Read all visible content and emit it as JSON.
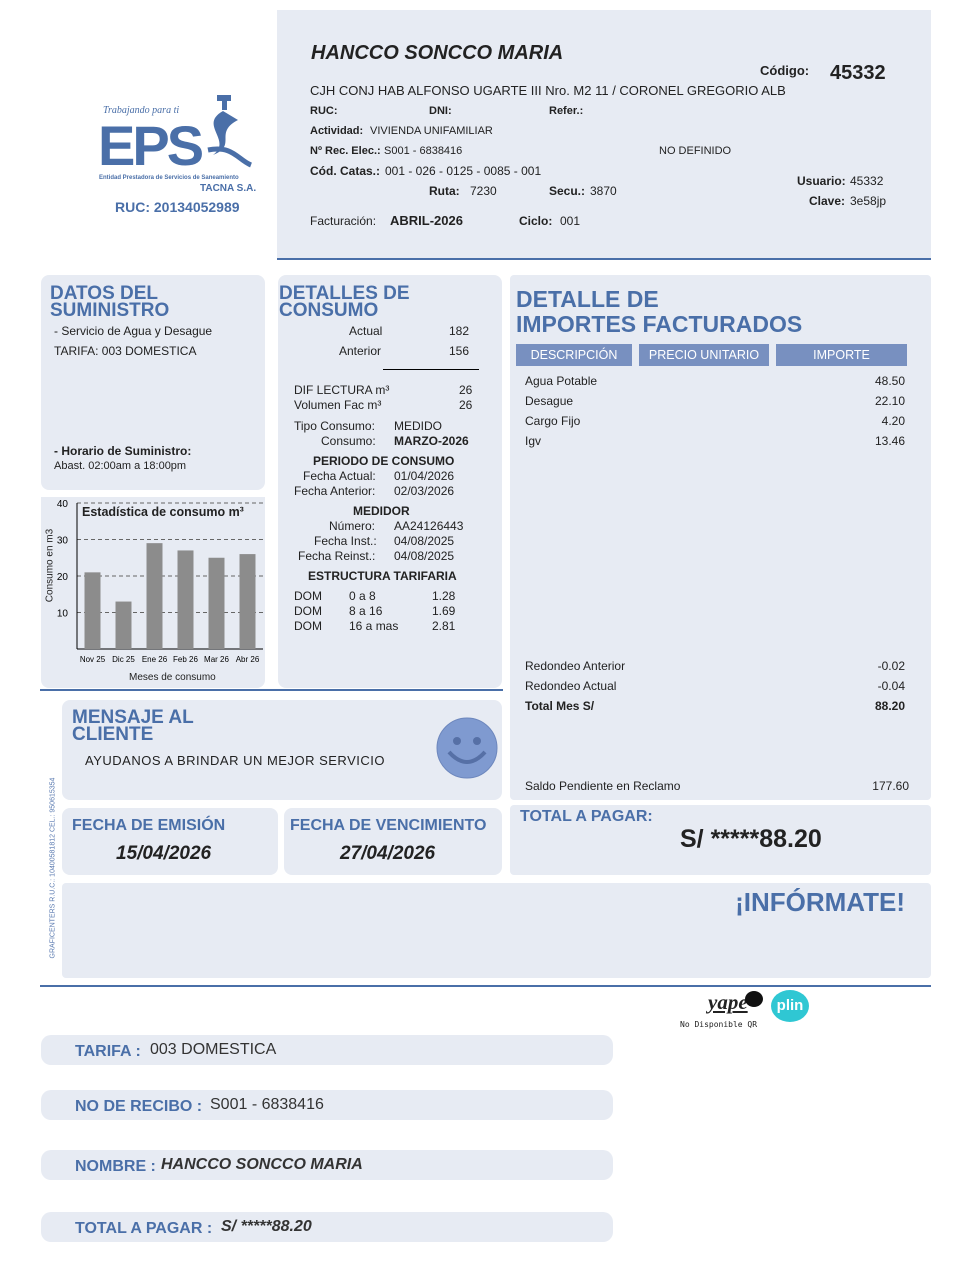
{
  "logo": {
    "tagline": "Trabajando para ti",
    "brand": "EPS",
    "entity": "Entidad Prestadora de Servicios de Saneamiento",
    "company": "TACNA S.A.",
    "ruc": "RUC: 20134052989",
    "color": "#4a6fa8"
  },
  "header": {
    "name": "HANCCO SONCCO MARIA",
    "codigo_label": "Código:",
    "codigo": "45332",
    "address": "CJH CONJ HAB ALFONSO UGARTE III Nro. M2  11 / CORONEL GREGORIO ALB",
    "ruc_label": "RUC:",
    "dni_label": "DNI:",
    "refer_label": "Refer.:",
    "actividad_label": "Actividad:",
    "actividad": "VIVIENDA UNIFAMILIAR",
    "rec_label": "Nº Rec. Elec.:",
    "rec": "S001 - 6838416",
    "no_definido": "NO DEFINIDO",
    "catas_label": "Cód. Catas.:",
    "catas": "001 - 026 - 0125 - 0085 - 001",
    "ruta_label": "Ruta:",
    "ruta": "7230",
    "secu_label": "Secu.:",
    "secu": "3870",
    "usuario_label": "Usuario:",
    "usuario": "45332",
    "clave_label": "Clave:",
    "clave": "3e58jp",
    "fact_label": "Facturación:",
    "fact": "ABRIL-2026",
    "ciclo_label": "Ciclo:",
    "ciclo": "001"
  },
  "suministro": {
    "title1": "DATOS DEL",
    "title2": "SUMINISTRO",
    "servicio": "- Servicio de Agua y Desague",
    "tarifa": "TARIFA: 003 DOMESTICA",
    "horario_label": "- Horario de Suministro:",
    "horario": "Abast. 02:00am a 18:00pm"
  },
  "chart_data": {
    "type": "bar",
    "title": "Estadística de consumo m³",
    "xlabel": "Meses de consumo",
    "ylabel": "Consumo en m3",
    "categories": [
      "Nov 25",
      "Dic 25",
      "Ene 26",
      "Feb 26",
      "Mar 26",
      "Abr 26"
    ],
    "values": [
      21,
      13,
      29,
      27,
      25,
      26
    ],
    "ylim": [
      0,
      40
    ],
    "yticks": [
      "10",
      "20",
      "30",
      "40"
    ],
    "grid": true,
    "bar_color": "#8c8c8c"
  },
  "consumo": {
    "title1": "DETALLES DE",
    "title2": "CONSUMO",
    "actual_label": "Actual",
    "actual": "182",
    "anterior_label": "Anterior",
    "anterior": "156",
    "dif_label": "DIF LECTURA m³",
    "dif": "26",
    "vol_label": "Volumen Fac m³",
    "vol": "26",
    "tipo_label": "Tipo Consumo:",
    "tipo": "MEDIDO",
    "cons_label": "Consumo:",
    "cons": "MARZO-2026",
    "periodo_title": "PERIODO DE CONSUMO",
    "f_actual_label": "Fecha Actual:",
    "f_actual": "01/04/2026",
    "f_anterior_label": "Fecha Anterior:",
    "f_anterior": "02/03/2026",
    "medidor_title": "MEDIDOR",
    "numero_label": "Número:",
    "numero": "AA24126443",
    "inst_label": "Fecha Inst.:",
    "inst": "04/08/2025",
    "reinst_label": "Fecha Reinst.:",
    "reinst": "04/08/2025",
    "estructura_title": "ESTRUCTURA TARIFARIA",
    "tarifas": [
      {
        "c": "DOM",
        "r": "0 a 8",
        "p": "1.28"
      },
      {
        "c": "DOM",
        "r": "8 a 16",
        "p": "1.69"
      },
      {
        "c": "DOM",
        "r": "16 a mas",
        "p": "2.81"
      }
    ]
  },
  "importes": {
    "title1": "DETALLE DE",
    "title2": "IMPORTES FACTURADOS",
    "headers": [
      "DESCRIPCIÓN",
      "PRECIO UNITARIO",
      "IMPORTE"
    ],
    "items": [
      {
        "d": "Agua Potable",
        "v": "48.50"
      },
      {
        "d": "Desague",
        "v": "22.10"
      },
      {
        "d": "Cargo Fijo",
        "v": "4.20"
      },
      {
        "d": "Igv",
        "v": "13.46"
      }
    ],
    "red_ant_label": "Redondeo Anterior",
    "red_ant": "-0.02",
    "red_act_label": "Redondeo Actual",
    "red_act": "-0.04",
    "total_label": "Total Mes S/",
    "total": "88.20",
    "saldo_label": "Saldo Pendiente en Reclamo",
    "saldo": "177.60"
  },
  "mensaje": {
    "title1": "MENSAJE AL",
    "title2": "CLIENTE",
    "text": "AYUDANOS A BRINDAR UN MEJOR SERVICIO"
  },
  "side_text": "GRAFICENTERS  R.U.C.: 10400581812  CEL.: 950615354",
  "emision": {
    "label": "FECHA DE EMISIÓN",
    "value": "15/04/2026"
  },
  "vencimiento": {
    "label": "FECHA DE VENCIMIENTO",
    "value": "27/04/2026"
  },
  "total": {
    "label": "TOTAL A PAGAR:",
    "value": "S/ *****88.20"
  },
  "informate": "¡INFÓRMATE!",
  "pago": {
    "yape": "yape",
    "plin": "plin",
    "qr": "No Disponible QR"
  },
  "resumen": [
    {
      "label": "TARIFA :",
      "value": "003 DOMESTICA"
    },
    {
      "label": "NO DE RECIBO :",
      "value": "S001 - 6838416"
    },
    {
      "label": "NOMBRE :",
      "value": "HANCCO SONCCO MARIA"
    },
    {
      "label": "TOTAL A PAGAR :",
      "value": "S/ *****88.20"
    }
  ]
}
